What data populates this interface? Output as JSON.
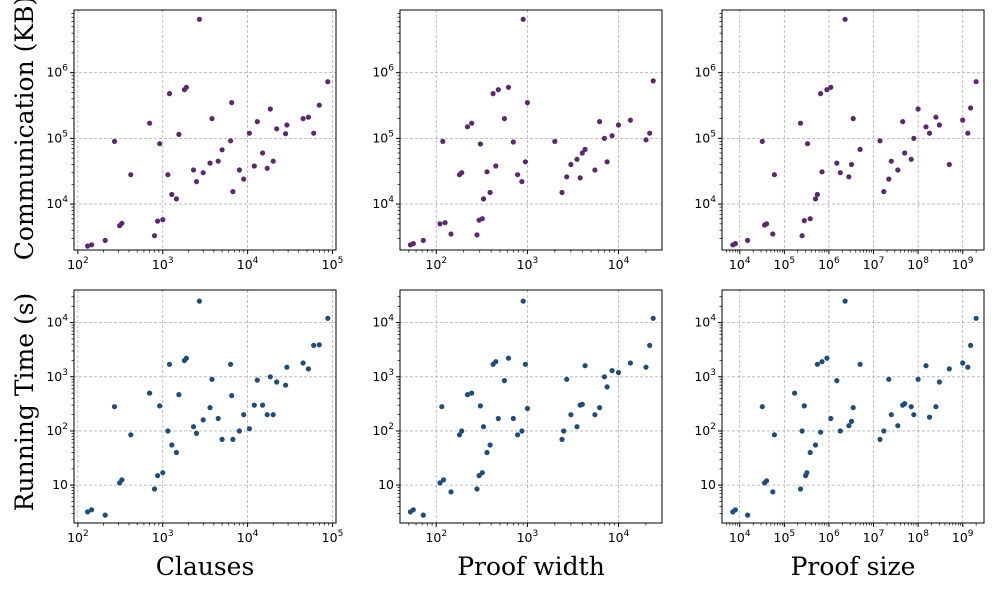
{
  "colors": {
    "communication": "#5b2a6e",
    "running_time": "#1f4d7a"
  },
  "chart_data": [
    {
      "type": "scatter",
      "id": "comm-clauses",
      "row": 0,
      "col": 0,
      "xlabel": "",
      "ylabel": "Communication (KB)",
      "xscale": "log",
      "yscale": "log",
      "xlim": [
        90,
        110000
      ],
      "ylim": [
        2000,
        9000000
      ],
      "xticks": [
        {
          "v": 100,
          "b": "10",
          "e": "2"
        },
        {
          "v": 1000,
          "b": "10",
          "e": "3"
        },
        {
          "v": 10000,
          "b": "10",
          "e": "4"
        },
        {
          "v": 100000,
          "b": "10",
          "e": "5"
        }
      ],
      "yticks": [
        {
          "v": 10000,
          "b": "10",
          "e": "4"
        },
        {
          "v": 100000,
          "b": "10",
          "e": "5"
        },
        {
          "v": 1000000,
          "b": "10",
          "e": "6"
        }
      ],
      "x": [
        130,
        145,
        210,
        270,
        310,
        330,
        420,
        700,
        800,
        870,
        920,
        1000,
        1150,
        1200,
        1280,
        1450,
        1550,
        1800,
        1900,
        2300,
        2500,
        2700,
        3000,
        3600,
        3800,
        4500,
        5000,
        6300,
        6500,
        6700,
        8000,
        9000,
        10500,
        12000,
        13000,
        15000,
        17000,
        18500,
        20000,
        22000,
        28000,
        29000,
        45000,
        52000,
        60000,
        70000,
        88000
      ],
      "y": [
        2300,
        2400,
        2800,
        90000,
        4700,
        5100,
        28000,
        170000,
        3300,
        5500,
        83000,
        5800,
        28000,
        480000,
        14000,
        12000,
        115000,
        550000,
        600000,
        33000,
        22000,
        6500000,
        30000,
        42000,
        200000,
        45000,
        67000,
        92000,
        350000,
        15500,
        33000,
        24000,
        120000,
        38000,
        180000,
        60000,
        35000,
        280000,
        45000,
        140000,
        118000,
        160000,
        200000,
        210000,
        120000,
        320000,
        730000
      ]
    },
    {
      "type": "scatter",
      "id": "comm-width",
      "row": 0,
      "col": 1,
      "xlabel": "",
      "ylabel": "",
      "xscale": "log",
      "yscale": "log",
      "xlim": [
        40,
        30000
      ],
      "ylim": [
        2000,
        9000000
      ],
      "xticks": [
        {
          "v": 100,
          "b": "10",
          "e": "2"
        },
        {
          "v": 1000,
          "b": "10",
          "e": "3"
        },
        {
          "v": 10000,
          "b": "10",
          "e": "4"
        }
      ],
      "yticks": [
        {
          "v": 10000,
          "b": "10",
          "e": "4"
        },
        {
          "v": 100000,
          "b": "10",
          "e": "5"
        },
        {
          "v": 1000000,
          "b": "10",
          "e": "6"
        }
      ],
      "x": [
        52,
        56,
        72,
        110,
        118,
        125,
        145,
        180,
        190,
        220,
        245,
        280,
        295,
        305,
        320,
        330,
        360,
        390,
        420,
        450,
        480,
        560,
        620,
        700,
        780,
        870,
        900,
        950,
        1000,
        2000,
        2400,
        2700,
        3000,
        3500,
        3800,
        4000,
        4300,
        5500,
        6200,
        7000,
        7500,
        8500,
        10000,
        13500,
        20000,
        22000,
        24000
      ],
      "y": [
        2400,
        2500,
        2800,
        5000,
        90000,
        5200,
        3500,
        28000,
        30000,
        150000,
        170000,
        3400,
        5700,
        82000,
        6000,
        12000,
        31000,
        15000,
        480000,
        38000,
        550000,
        200000,
        600000,
        88000,
        28000,
        22000,
        6500000,
        44000,
        350000,
        90000,
        15000,
        26000,
        40000,
        48000,
        25000,
        60000,
        68000,
        33000,
        180000,
        100000,
        44000,
        110000,
        160000,
        190000,
        95000,
        120000,
        750000
      ]
    },
    {
      "type": "scatter",
      "id": "comm-size",
      "row": 0,
      "col": 2,
      "xlabel": "",
      "ylabel": "",
      "xscale": "log",
      "yscale": "log",
      "xlim": [
        4000,
        3000000000
      ],
      "ylim": [
        2000,
        9000000
      ],
      "xticks": [
        {
          "v": 10000,
          "b": "10",
          "e": "4"
        },
        {
          "v": 100000,
          "b": "10",
          "e": "5"
        },
        {
          "v": 1000000,
          "b": "10",
          "e": "6"
        },
        {
          "v": 10000000,
          "b": "10",
          "e": "7"
        },
        {
          "v": 100000000,
          "b": "10",
          "e": "8"
        },
        {
          "v": 1000000000,
          "b": "10",
          "e": "9"
        }
      ],
      "yticks": [
        {
          "v": 10000,
          "b": "10",
          "e": "4"
        },
        {
          "v": 100000,
          "b": "10",
          "e": "5"
        },
        {
          "v": 1000000,
          "b": "10",
          "e": "6"
        }
      ],
      "x": [
        7000,
        8000,
        15000,
        32000,
        36000,
        40000,
        55000,
        60000,
        230000,
        250000,
        280000,
        330000,
        380000,
        500000,
        550000,
        650000,
        700000,
        900000,
        1100000,
        1500000,
        1800000,
        2300000,
        2800000,
        3200000,
        3500000,
        5000000,
        14000000,
        17000000,
        22000000,
        25000000,
        35000000,
        45000000,
        50000000,
        70000000,
        80000000,
        100000000,
        150000000,
        180000000,
        250000000,
        300000000,
        500000000,
        1000000000,
        1300000000,
        1500000000,
        2000000000
      ],
      "y": [
        2400,
        2500,
        2800,
        90000,
        4800,
        5000,
        3500,
        28000,
        170000,
        3300,
        5600,
        83000,
        6000,
        12000,
        14000,
        480000,
        31000,
        550000,
        600000,
        42000,
        30000,
        6500000,
        26000,
        40000,
        200000,
        68000,
        92000,
        15500,
        24000,
        45000,
        33000,
        180000,
        60000,
        48000,
        100000,
        280000,
        150000,
        120000,
        210000,
        160000,
        40000,
        190000,
        120000,
        290000,
        730000
      ]
    },
    {
      "type": "scatter",
      "id": "time-clauses",
      "row": 1,
      "col": 0,
      "xlabel": "Clauses",
      "ylabel": "Running Time (s)",
      "xscale": "log",
      "yscale": "log",
      "xlim": [
        90,
        110000
      ],
      "ylim": [
        2,
        40000
      ],
      "xticks": [
        {
          "v": 100,
          "b": "10",
          "e": "2"
        },
        {
          "v": 1000,
          "b": "10",
          "e": "3"
        },
        {
          "v": 10000,
          "b": "10",
          "e": "4"
        },
        {
          "v": 100000,
          "b": "10",
          "e": "5"
        }
      ],
      "yticks": [
        {
          "v": 10,
          "t": "10"
        },
        {
          "v": 100,
          "b": "10",
          "e": "2"
        },
        {
          "v": 1000,
          "b": "10",
          "e": "3"
        },
        {
          "v": 10000,
          "b": "10",
          "e": "4"
        }
      ],
      "x": [
        130,
        145,
        210,
        270,
        310,
        330,
        420,
        700,
        800,
        870,
        920,
        1000,
        1150,
        1200,
        1280,
        1450,
        1550,
        1800,
        1900,
        2300,
        2500,
        2700,
        3000,
        3600,
        3800,
        4500,
        5000,
        6300,
        6500,
        6700,
        8000,
        9000,
        10500,
        12000,
        13000,
        15000,
        17000,
        18500,
        20000,
        22000,
        28000,
        29000,
        45000,
        52000,
        60000,
        70000,
        88000
      ],
      "y": [
        3.2,
        3.5,
        2.8,
        280,
        11,
        12.5,
        85,
        500,
        8.5,
        15,
        290,
        17,
        100,
        1700,
        55,
        40,
        470,
        2000,
        2200,
        120,
        90,
        25000,
        160,
        270,
        900,
        170,
        70,
        1700,
        450,
        70,
        100,
        200,
        110,
        300,
        870,
        300,
        200,
        1000,
        200,
        800,
        700,
        1500,
        1800,
        1400,
        3800,
        3900,
        12000
      ]
    },
    {
      "type": "scatter",
      "id": "time-width",
      "row": 1,
      "col": 1,
      "xlabel": "Proof width",
      "ylabel": "",
      "xscale": "log",
      "yscale": "log",
      "xlim": [
        40,
        30000
      ],
      "ylim": [
        2,
        40000
      ],
      "xticks": [
        {
          "v": 100,
          "b": "10",
          "e": "2"
        },
        {
          "v": 1000,
          "b": "10",
          "e": "3"
        },
        {
          "v": 10000,
          "b": "10",
          "e": "4"
        }
      ],
      "yticks": [
        {
          "v": 10,
          "t": "10"
        },
        {
          "v": 100,
          "b": "10",
          "e": "2"
        },
        {
          "v": 1000,
          "b": "10",
          "e": "3"
        },
        {
          "v": 10000,
          "b": "10",
          "e": "4"
        }
      ],
      "x": [
        52,
        56,
        72,
        110,
        115,
        120,
        145,
        180,
        190,
        220,
        245,
        280,
        295,
        305,
        320,
        330,
        360,
        390,
        420,
        450,
        480,
        560,
        620,
        700,
        780,
        870,
        900,
        950,
        1000,
        2400,
        2500,
        2700,
        3000,
        3500,
        3800,
        4000,
        4300,
        5500,
        6200,
        7000,
        7500,
        8500,
        10000,
        13500,
        20000,
        22000,
        24000
      ],
      "y": [
        3.2,
        3.5,
        2.8,
        11,
        280,
        12.5,
        7.5,
        85,
        100,
        470,
        500,
        8.5,
        15,
        290,
        17,
        120,
        40,
        55,
        1700,
        1900,
        170,
        850,
        2200,
        170,
        85,
        100,
        25000,
        1700,
        260,
        70,
        100,
        900,
        200,
        120,
        300,
        310,
        1600,
        200,
        270,
        1000,
        650,
        1300,
        1200,
        1800,
        1500,
        3800,
        12000
      ]
    },
    {
      "type": "scatter",
      "id": "time-size",
      "row": 1,
      "col": 2,
      "xlabel": "Proof size",
      "ylabel": "",
      "xscale": "log",
      "yscale": "log",
      "xlim": [
        4000,
        3000000000
      ],
      "ylim": [
        2,
        40000
      ],
      "xticks": [
        {
          "v": 10000,
          "b": "10",
          "e": "4"
        },
        {
          "v": 100000,
          "b": "10",
          "e": "5"
        },
        {
          "v": 1000000,
          "b": "10",
          "e": "6"
        },
        {
          "v": 10000000,
          "b": "10",
          "e": "7"
        },
        {
          "v": 100000000,
          "b": "10",
          "e": "8"
        },
        {
          "v": 1000000000,
          "b": "10",
          "e": "9"
        }
      ],
      "yticks": [
        {
          "v": 10,
          "t": "10"
        },
        {
          "v": 100,
          "b": "10",
          "e": "2"
        },
        {
          "v": 1000,
          "b": "10",
          "e": "3"
        },
        {
          "v": 10000,
          "b": "10",
          "e": "4"
        }
      ],
      "x": [
        7000,
        8000,
        15000,
        32000,
        36000,
        40000,
        55000,
        60000,
        170000,
        230000,
        250000,
        280000,
        300000,
        320000,
        380000,
        500000,
        550000,
        650000,
        700000,
        900000,
        1100000,
        1500000,
        1800000,
        2300000,
        2800000,
        3200000,
        3500000,
        5000000,
        14000000,
        17000000,
        22000000,
        25000000,
        35000000,
        45000000,
        50000000,
        70000000,
        80000000,
        100000000,
        150000000,
        180000000,
        250000000,
        300000000,
        500000000,
        1000000000,
        1300000000,
        1500000000,
        2000000000
      ],
      "y": [
        3.2,
        3.5,
        2.8,
        280,
        11,
        12,
        7.5,
        85,
        500,
        8.5,
        100,
        290,
        15,
        17,
        40,
        55,
        1700,
        95,
        1900,
        2200,
        170,
        850,
        100,
        25000,
        125,
        150,
        270,
        1700,
        70,
        100,
        900,
        200,
        125,
        300,
        320,
        280,
        200,
        900,
        1600,
        180,
        280,
        800,
        1400,
        1800,
        1500,
        3800,
        12000
      ]
    }
  ]
}
